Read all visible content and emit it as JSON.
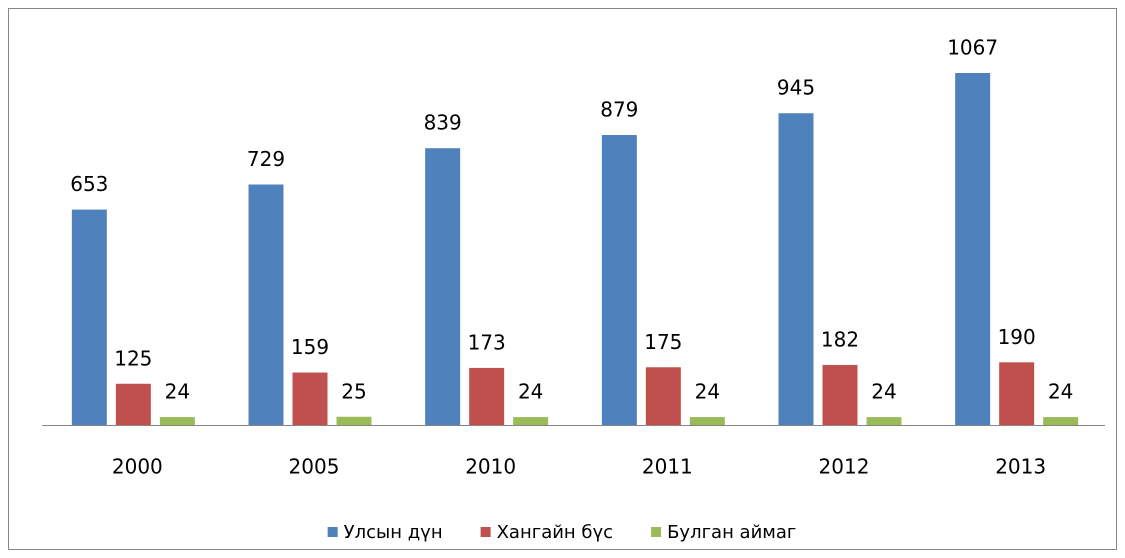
{
  "chart_data": {
    "type": "bar",
    "categories": [
      "2000",
      "2005",
      "2010",
      "2011",
      "2012",
      "2013"
    ],
    "series": [
      {
        "name": "Улсын дүн",
        "color": "#4f81bd",
        "values": [
          653,
          729,
          839,
          879,
          945,
          1067
        ]
      },
      {
        "name": "Хангайн бүс",
        "color": "#c0504d",
        "values": [
          125,
          159,
          173,
          175,
          182,
          190
        ]
      },
      {
        "name": "Булган аймаг",
        "color": "#9bbb59",
        "values": [
          24,
          25,
          24,
          24,
          24,
          24
        ]
      }
    ],
    "legend": "bottom"
  }
}
